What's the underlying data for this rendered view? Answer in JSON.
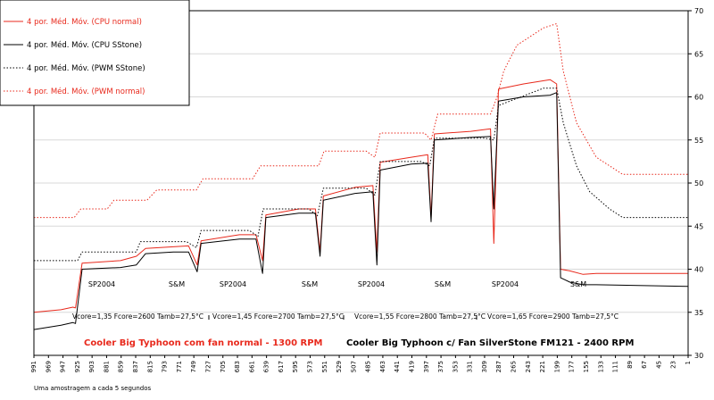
{
  "chart_data": {
    "type": "line",
    "y_axis": {
      "position": "right",
      "ylim": [
        30,
        70
      ],
      "ticks": [
        30,
        35,
        40,
        45,
        50,
        55,
        60,
        65,
        70
      ]
    },
    "x_axis": {
      "reversed": true,
      "xlim": [
        991,
        1
      ],
      "ticks": [
        991,
        969,
        947,
        925,
        903,
        881,
        859,
        837,
        815,
        793,
        771,
        749,
        727,
        705,
        683,
        661,
        639,
        617,
        595,
        573,
        551,
        529,
        507,
        485,
        463,
        441,
        419,
        397,
        375,
        353,
        331,
        309,
        287,
        265,
        243,
        221,
        199,
        177,
        155,
        133,
        111,
        89,
        67,
        45,
        23,
        1
      ]
    },
    "grid": true,
    "legend": {
      "placement": "top-left",
      "entries": [
        {
          "label": "4 por. Méd. Móv. (CPU normal)",
          "color": "#e8291c",
          "style": "solid"
        },
        {
          "label": "4 por. Méd. Móv. (CPU SStone)",
          "color": "#000000",
          "style": "solid"
        },
        {
          "label": "4 por. Méd. Móv. (PWM SStone)",
          "color": "#000000",
          "style": "dotted"
        },
        {
          "label": "4 por. Méd. Móv. (PWM normal)",
          "color": "#e8291c",
          "style": "dotted"
        }
      ]
    },
    "annotations": {
      "phases": [
        "SP2004",
        "S&M",
        "SP2004",
        "S&M",
        "SP2004",
        "S&M",
        "SP2004",
        "S&M"
      ],
      "settings": [
        "Vcore=1,35 Fcore=2600 Tamb=27,5°C",
        "Vcore=1,45 Fcore=2700 Tamb=27,5°C",
        "Vcore=1,55 Fcore=2800 Tamb=27,5°C",
        "Vcore=1,65 Fcore=2900 Tamb=27,5°C"
      ],
      "separator": "|",
      "caption_left": "Cooler Big Typhoon com fan normal - 1300 RPM",
      "caption_right": "Cooler Big Typhoon c/ Fan SilverStone FM121 - 2400 RPM",
      "footnote": "Uma amostragem a cada 5 segundos"
    },
    "series": [
      {
        "name": "4 por. Méd. Móv. (CPU normal)",
        "color": "#e8291c",
        "style": "solid",
        "points": [
          [
            991,
            35
          ],
          [
            950,
            35.3
          ],
          [
            932,
            35.6
          ],
          [
            928,
            35.5
          ],
          [
            918,
            40.7
          ],
          [
            860,
            41
          ],
          [
            836,
            41.5
          ],
          [
            822,
            42.4
          ],
          [
            780,
            42.6
          ],
          [
            757,
            42.7
          ],
          [
            744,
            40.5
          ],
          [
            738,
            43.3
          ],
          [
            680,
            44
          ],
          [
            655,
            44
          ],
          [
            645,
            41
          ],
          [
            640,
            46.3
          ],
          [
            590,
            47
          ],
          [
            565,
            47
          ],
          [
            558,
            42
          ],
          [
            553,
            48.5
          ],
          [
            505,
            49.5
          ],
          [
            478,
            49.7
          ],
          [
            472,
            42
          ],
          [
            467,
            52.4
          ],
          [
            420,
            53
          ],
          [
            395,
            53.3
          ],
          [
            390,
            46
          ],
          [
            385,
            55.7
          ],
          [
            330,
            56
          ],
          [
            300,
            56.3
          ],
          [
            295,
            43
          ],
          [
            288,
            60.9
          ],
          [
            250,
            61.5
          ],
          [
            210,
            62
          ],
          [
            200,
            61.5
          ],
          [
            194,
            40
          ],
          [
            180,
            39.8
          ],
          [
            160,
            39.4
          ],
          [
            140,
            39.5
          ],
          [
            1,
            39.5
          ]
        ]
      },
      {
        "name": "4 por. Méd. Móv. (CPU SStone)",
        "color": "#000000",
        "style": "solid",
        "points": [
          [
            991,
            33
          ],
          [
            950,
            33.5
          ],
          [
            932,
            33.8
          ],
          [
            928,
            33.7
          ],
          [
            918,
            40
          ],
          [
            860,
            40.2
          ],
          [
            836,
            40.5
          ],
          [
            822,
            41.8
          ],
          [
            780,
            42
          ],
          [
            757,
            42
          ],
          [
            744,
            39.7
          ],
          [
            738,
            43
          ],
          [
            680,
            43.5
          ],
          [
            655,
            43.5
          ],
          [
            645,
            39.5
          ],
          [
            640,
            46
          ],
          [
            590,
            46.5
          ],
          [
            565,
            46.5
          ],
          [
            558,
            41.5
          ],
          [
            553,
            48
          ],
          [
            505,
            48.8
          ],
          [
            478,
            49
          ],
          [
            472,
            40.5
          ],
          [
            467,
            51.5
          ],
          [
            420,
            52.2
          ],
          [
            395,
            52.3
          ],
          [
            390,
            45.5
          ],
          [
            385,
            55
          ],
          [
            330,
            55.3
          ],
          [
            300,
            55.4
          ],
          [
            295,
            47
          ],
          [
            288,
            59.5
          ],
          [
            250,
            60
          ],
          [
            210,
            60.2
          ],
          [
            200,
            60.5
          ],
          [
            194,
            39
          ],
          [
            180,
            38.5
          ],
          [
            160,
            38.2
          ],
          [
            140,
            38.2
          ],
          [
            1,
            38
          ]
        ]
      },
      {
        "name": "4 por. Méd. Móv. (PWM SStone)",
        "color": "#000000",
        "style": "dotted",
        "points": [
          [
            991,
            41
          ],
          [
            925,
            41
          ],
          [
            918,
            42
          ],
          [
            860,
            42
          ],
          [
            836,
            42
          ],
          [
            830,
            43.2
          ],
          [
            760,
            43.2
          ],
          [
            745,
            42.5
          ],
          [
            738,
            44.5
          ],
          [
            665,
            44.5
          ],
          [
            652,
            43.8
          ],
          [
            644,
            47
          ],
          [
            575,
            47
          ],
          [
            562,
            46.2
          ],
          [
            553,
            49.4
          ],
          [
            488,
            49.4
          ],
          [
            475,
            48.6
          ],
          [
            467,
            52.5
          ],
          [
            405,
            52.5
          ],
          [
            392,
            52
          ],
          [
            385,
            55.2
          ],
          [
            308,
            55.2
          ],
          [
            295,
            55
          ],
          [
            288,
            59
          ],
          [
            220,
            61
          ],
          [
            200,
            61
          ],
          [
            190,
            57
          ],
          [
            170,
            52
          ],
          [
            150,
            49
          ],
          [
            120,
            47
          ],
          [
            100,
            46
          ],
          [
            1,
            46
          ]
        ]
      },
      {
        "name": "4 por. Méd. Móv. (PWM normal)",
        "color": "#e8291c",
        "style": "dotted",
        "points": [
          [
            991,
            46
          ],
          [
            930,
            46
          ],
          [
            920,
            47
          ],
          [
            880,
            47
          ],
          [
            870,
            48
          ],
          [
            820,
            48
          ],
          [
            805,
            49.2
          ],
          [
            745,
            49.2
          ],
          [
            735,
            50.5
          ],
          [
            660,
            50.5
          ],
          [
            648,
            52
          ],
          [
            560,
            52
          ],
          [
            552,
            53.7
          ],
          [
            488,
            53.7
          ],
          [
            475,
            53
          ],
          [
            467,
            55.8
          ],
          [
            400,
            55.8
          ],
          [
            390,
            55
          ],
          [
            380,
            58
          ],
          [
            300,
            58
          ],
          [
            290,
            60
          ],
          [
            280,
            63
          ],
          [
            260,
            66
          ],
          [
            220,
            68
          ],
          [
            200,
            68.5
          ],
          [
            190,
            63
          ],
          [
            170,
            57
          ],
          [
            140,
            53
          ],
          [
            100,
            51
          ],
          [
            1,
            51
          ]
        ]
      }
    ]
  }
}
